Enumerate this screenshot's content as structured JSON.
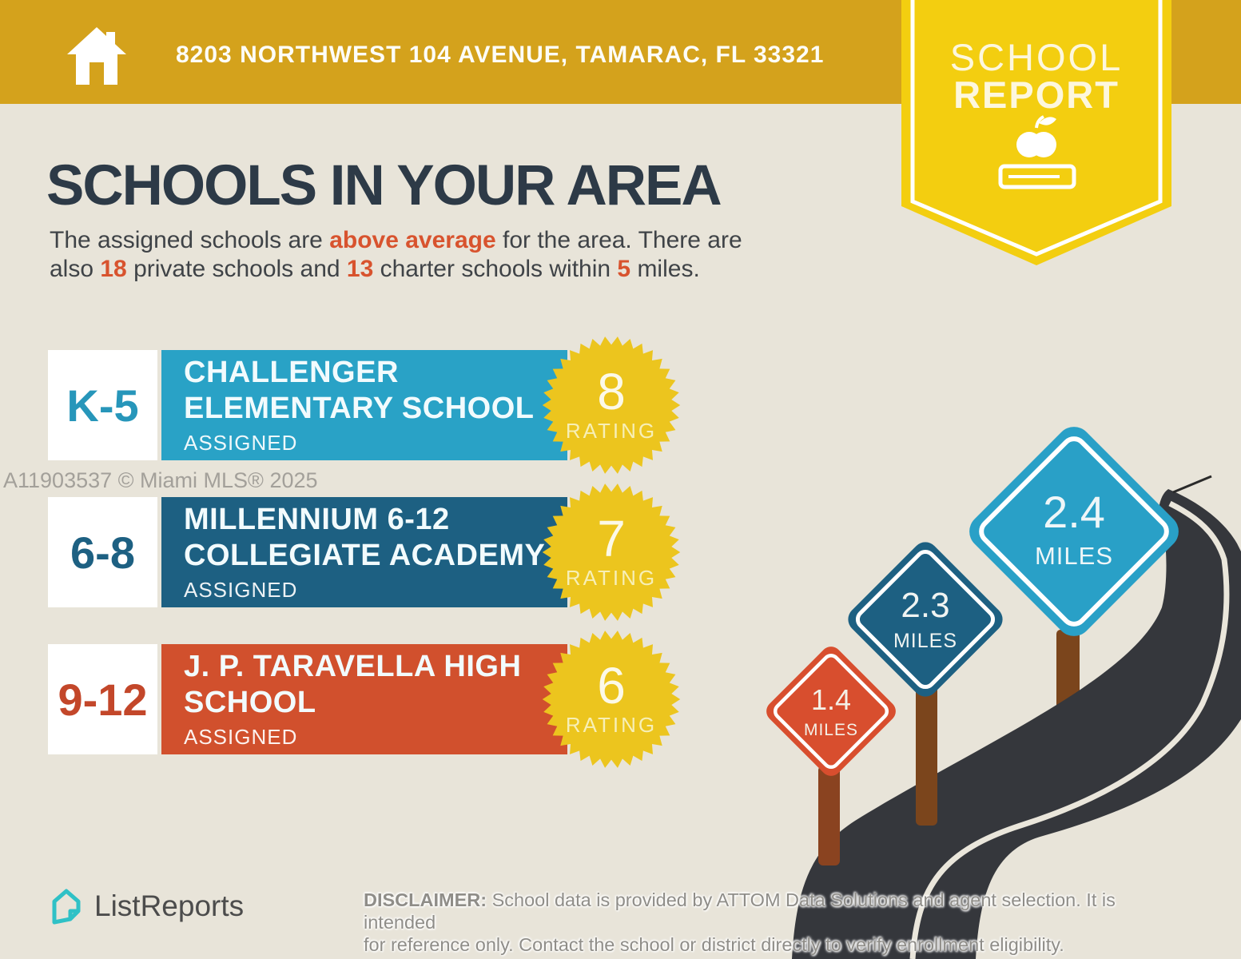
{
  "banner": {
    "bg": "#d4a21c",
    "address": "8203 NORTHWEST 104 AVENUE, TAMARAC, FL 33321"
  },
  "ribbon": {
    "bg": "#f3ce10",
    "word1": "SCHOOL",
    "word2": "REPORT"
  },
  "headline": "SCHOOLS IN YOUR AREA",
  "intro": {
    "accent": "#d8532e",
    "s1": "The assigned schools are ",
    "s2": "above average",
    "s3": " for the area. There are",
    "s4": "also ",
    "s5": "18",
    "s6": " private schools and ",
    "s7": "13",
    "s8": " charter schools within ",
    "s9": "5",
    "s10": " miles."
  },
  "schools": [
    {
      "grades": "K-5",
      "grade_color": "#2796ba",
      "bar_color": "#29a2c6",
      "line1": "CHALLENGER",
      "line2": "ELEMENTARY SCHOOL",
      "status": "ASSIGNED",
      "rating": "8",
      "rating_label": "RATING"
    },
    {
      "grades": "6-8",
      "grade_color": "#1d6082",
      "bar_color": "#1d6082",
      "line1": "MILLENNIUM 6-12",
      "line2": "COLLEGIATE ACADEMY",
      "status": "ASSIGNED",
      "rating": "7",
      "rating_label": "RATING"
    },
    {
      "grades": "9-12",
      "grade_color": "#c3472a",
      "bar_color": "#d1502d",
      "line1": "J. P. TARAVELLA HIGH",
      "line2": "SCHOOL",
      "status": "ASSIGNED",
      "rating": "6",
      "rating_label": "RATING"
    }
  ],
  "badge_color": "#ecc51e",
  "watermark": "A11903537 © Miami MLS® 2025",
  "signs": [
    {
      "value": "1.4",
      "unit": "MILES",
      "color": "#d84e2e"
    },
    {
      "value": "2.3",
      "unit": "MILES",
      "color": "#1d6082"
    },
    {
      "value": "2.4",
      "unit": "MILES",
      "color": "#29a0c7"
    }
  ],
  "road_color": "#35373c",
  "footer": {
    "brand": "ListReports",
    "icon_color": "#2fc1c6",
    "disclaimer_bold": "DISCLAIMER:",
    "disclaimer_line1": " School data is provided by ATTOM Data Solutions and agent selection. It is intended",
    "disclaimer_line2": "for reference only. Contact the school or district directly to verify enrollment eligibility."
  }
}
